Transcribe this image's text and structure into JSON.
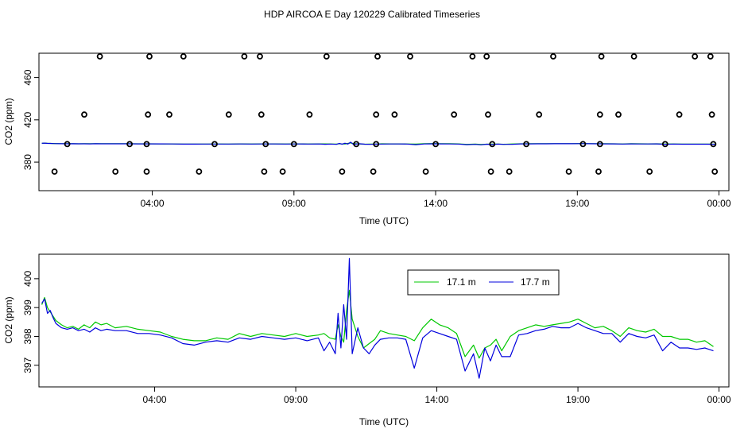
{
  "title": "HDP AIRCOA E  Day 120229  Calibrated Timeseries",
  "chart_data": [
    {
      "type": "scatter",
      "xlabel": "Time (UTC)",
      "ylabel": "CO2 (ppm)",
      "xlim": [
        0.0,
        24.35
      ],
      "ylim": [
        353,
        483
      ],
      "x_ticks": [
        4,
        9,
        14,
        19,
        24
      ],
      "x_tick_labels": [
        "04:00",
        "09:00",
        "14:00",
        "19:00",
        "00:00"
      ],
      "y_ticks": [
        380,
        420,
        460
      ],
      "y_tick_labels": [
        "380",
        "420",
        "460"
      ],
      "outlier_points": [
        {
          "x": 0.55,
          "y": 371
        },
        {
          "x": 1.6,
          "y": 425
        },
        {
          "x": 2.15,
          "y": 480
        },
        {
          "x": 2.7,
          "y": 371
        },
        {
          "x": 3.8,
          "y": 371
        },
        {
          "x": 3.85,
          "y": 425
        },
        {
          "x": 3.9,
          "y": 480
        },
        {
          "x": 4.6,
          "y": 425
        },
        {
          "x": 5.1,
          "y": 480
        },
        {
          "x": 5.65,
          "y": 371
        },
        {
          "x": 6.7,
          "y": 425
        },
        {
          "x": 7.25,
          "y": 480
        },
        {
          "x": 7.8,
          "y": 480
        },
        {
          "x": 7.85,
          "y": 425
        },
        {
          "x": 7.95,
          "y": 371
        },
        {
          "x": 8.6,
          "y": 371
        },
        {
          "x": 9.55,
          "y": 425
        },
        {
          "x": 10.15,
          "y": 480
        },
        {
          "x": 10.7,
          "y": 371
        },
        {
          "x": 11.8,
          "y": 371
        },
        {
          "x": 11.9,
          "y": 425
        },
        {
          "x": 11.95,
          "y": 480
        },
        {
          "x": 12.55,
          "y": 425
        },
        {
          "x": 13.1,
          "y": 480
        },
        {
          "x": 13.65,
          "y": 371
        },
        {
          "x": 14.65,
          "y": 425
        },
        {
          "x": 15.3,
          "y": 480
        },
        {
          "x": 15.8,
          "y": 480
        },
        {
          "x": 15.85,
          "y": 425
        },
        {
          "x": 15.95,
          "y": 371
        },
        {
          "x": 16.6,
          "y": 371
        },
        {
          "x": 17.65,
          "y": 425
        },
        {
          "x": 18.15,
          "y": 480
        },
        {
          "x": 18.7,
          "y": 371
        },
        {
          "x": 19.75,
          "y": 371
        },
        {
          "x": 19.8,
          "y": 425
        },
        {
          "x": 19.85,
          "y": 480
        },
        {
          "x": 20.45,
          "y": 425
        },
        {
          "x": 21.0,
          "y": 480
        },
        {
          "x": 21.55,
          "y": 371
        },
        {
          "x": 22.6,
          "y": 425
        },
        {
          "x": 23.15,
          "y": 480
        },
        {
          "x": 23.7,
          "y": 480
        },
        {
          "x": 23.75,
          "y": 425
        },
        {
          "x": 23.85,
          "y": 371
        }
      ],
      "column_points": [
        {
          "x": 1.0,
          "y": 397
        },
        {
          "x": 3.2,
          "y": 397
        },
        {
          "x": 3.8,
          "y": 397
        },
        {
          "x": 6.2,
          "y": 397
        },
        {
          "x": 8.0,
          "y": 397
        },
        {
          "x": 9.0,
          "y": 397
        },
        {
          "x": 11.2,
          "y": 397
        },
        {
          "x": 11.9,
          "y": 397
        },
        {
          "x": 14.0,
          "y": 397
        },
        {
          "x": 16.0,
          "y": 397
        },
        {
          "x": 17.2,
          "y": 397
        },
        {
          "x": 19.2,
          "y": 397
        },
        {
          "x": 19.8,
          "y": 397
        },
        {
          "x": 22.1,
          "y": 397
        },
        {
          "x": 23.8,
          "y": 397
        }
      ],
      "series_style": [
        {
          "color": "#00c800"
        },
        {
          "color": "#0000dd"
        }
      ]
    },
    {
      "type": "line",
      "xlabel": "Time (UTC)",
      "ylabel": "CO2 (ppm)",
      "xlim": [
        -0.1,
        24.35
      ],
      "ylim": [
        396.25,
        400.85
      ],
      "x_ticks": [
        4,
        9,
        14,
        19,
        24
      ],
      "x_tick_labels": [
        "04:00",
        "09:00",
        "14:00",
        "19:00",
        "00:00"
      ],
      "y_ticks": [
        397,
        398,
        399,
        400
      ],
      "y_tick_labels": [
        "397",
        "398",
        "399",
        "400"
      ],
      "legend": {
        "position": "top-center"
      },
      "series": [
        {
          "name": "17.1 m",
          "color": "#00c800",
          "x": [
            0.0,
            0.1,
            0.2,
            0.3,
            0.4,
            0.5,
            0.7,
            0.9,
            1.1,
            1.3,
            1.5,
            1.7,
            1.9,
            2.1,
            2.3,
            2.6,
            3.0,
            3.4,
            3.8,
            4.2,
            4.6,
            5.0,
            5.4,
            5.8,
            6.2,
            6.6,
            7.0,
            7.4,
            7.8,
            8.2,
            8.6,
            9.0,
            9.4,
            9.8,
            10.0,
            10.2,
            10.4,
            10.5,
            10.6,
            10.7,
            10.8,
            10.9,
            11.0,
            11.2,
            11.4,
            11.6,
            11.8,
            12.0,
            12.3,
            12.6,
            12.9,
            13.2,
            13.5,
            13.8,
            14.1,
            14.4,
            14.7,
            15.0,
            15.3,
            15.5,
            15.7,
            15.9,
            16.1,
            16.3,
            16.6,
            16.9,
            17.2,
            17.5,
            17.8,
            18.1,
            18.4,
            18.7,
            19.0,
            19.3,
            19.6,
            19.9,
            20.2,
            20.5,
            20.8,
            21.1,
            21.4,
            21.7,
            22.0,
            22.3,
            22.6,
            22.9,
            23.2,
            23.5,
            23.8
          ],
          "values": [
            399.1,
            399.35,
            399.0,
            398.85,
            398.7,
            398.55,
            398.4,
            398.3,
            398.35,
            398.25,
            398.4,
            398.3,
            398.5,
            398.4,
            398.45,
            398.3,
            398.35,
            398.25,
            398.2,
            398.15,
            398.0,
            397.9,
            397.85,
            397.85,
            397.95,
            397.9,
            398.1,
            398.0,
            398.1,
            398.05,
            398.0,
            398.1,
            398.0,
            398.05,
            398.1,
            397.95,
            397.9,
            398.4,
            398.0,
            397.8,
            398.9,
            399.6,
            398.6,
            398.0,
            397.6,
            397.75,
            397.9,
            398.2,
            398.1,
            398.05,
            398.0,
            397.85,
            398.3,
            398.6,
            398.4,
            398.3,
            398.1,
            397.3,
            397.7,
            397.25,
            397.6,
            397.7,
            397.9,
            397.5,
            398.0,
            398.2,
            398.3,
            398.4,
            398.35,
            398.4,
            398.45,
            398.5,
            398.6,
            398.45,
            398.3,
            398.35,
            398.2,
            398.0,
            398.3,
            398.2,
            398.15,
            398.25,
            398.0,
            398.0,
            397.9,
            397.9,
            397.8,
            397.85,
            397.65
          ]
        },
        {
          "name": "17.7 m",
          "color": "#0000dd",
          "x": [
            0.0,
            0.1,
            0.2,
            0.3,
            0.4,
            0.5,
            0.7,
            0.9,
            1.1,
            1.3,
            1.5,
            1.7,
            1.9,
            2.1,
            2.3,
            2.6,
            3.0,
            3.4,
            3.8,
            4.2,
            4.6,
            5.0,
            5.4,
            5.8,
            6.2,
            6.6,
            7.0,
            7.4,
            7.8,
            8.2,
            8.6,
            9.0,
            9.4,
            9.8,
            10.0,
            10.2,
            10.4,
            10.5,
            10.6,
            10.7,
            10.8,
            10.9,
            11.0,
            11.2,
            11.4,
            11.6,
            11.8,
            12.0,
            12.3,
            12.6,
            12.9,
            13.2,
            13.5,
            13.8,
            14.1,
            14.4,
            14.7,
            15.0,
            15.3,
            15.5,
            15.7,
            15.9,
            16.1,
            16.3,
            16.6,
            16.9,
            17.2,
            17.5,
            17.8,
            18.1,
            18.4,
            18.7,
            19.0,
            19.3,
            19.6,
            19.9,
            20.2,
            20.5,
            20.8,
            21.1,
            21.4,
            21.7,
            22.0,
            22.3,
            22.6,
            22.9,
            23.2,
            23.5,
            23.8
          ],
          "values": [
            399.15,
            399.3,
            398.8,
            398.9,
            398.65,
            398.45,
            398.3,
            398.25,
            398.3,
            398.2,
            398.25,
            398.15,
            398.3,
            398.2,
            398.25,
            398.2,
            398.2,
            398.1,
            398.1,
            398.05,
            397.95,
            397.75,
            397.7,
            397.8,
            397.85,
            397.8,
            397.95,
            397.9,
            398.0,
            397.95,
            397.9,
            397.95,
            397.85,
            397.95,
            397.5,
            397.8,
            397.4,
            398.8,
            397.6,
            399.1,
            397.9,
            400.7,
            397.4,
            398.3,
            397.6,
            397.4,
            397.7,
            397.9,
            397.95,
            397.95,
            397.9,
            396.9,
            397.95,
            398.2,
            398.1,
            398.0,
            397.9,
            396.8,
            397.4,
            396.55,
            397.6,
            397.15,
            397.7,
            397.3,
            397.3,
            398.05,
            398.1,
            398.2,
            398.25,
            398.35,
            398.3,
            398.3,
            398.45,
            398.3,
            398.2,
            398.1,
            398.1,
            397.8,
            398.1,
            398.0,
            397.95,
            398.05,
            397.5,
            397.8,
            397.6,
            397.6,
            397.55,
            397.6,
            397.5
          ]
        }
      ]
    }
  ]
}
